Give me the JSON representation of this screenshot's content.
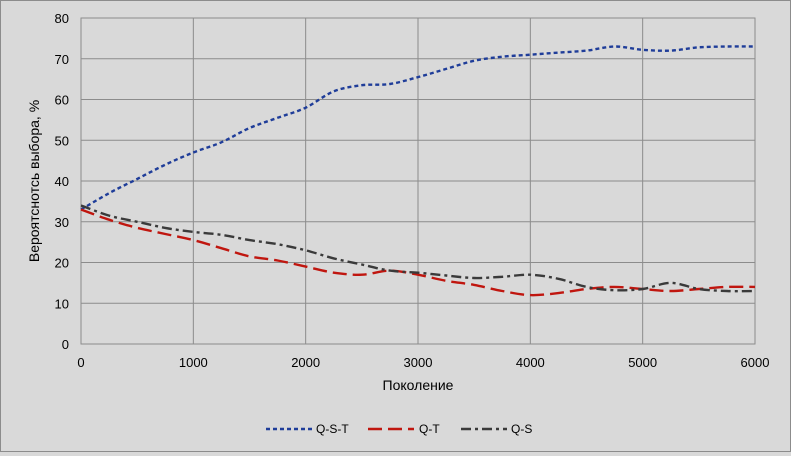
{
  "chart_data": {
    "type": "line",
    "title": "",
    "xlabel": "Поколение",
    "ylabel": "Вероятснотсь выбора, %",
    "xlim": [
      0,
      6000
    ],
    "ylim": [
      0,
      80
    ],
    "x_ticks": [
      0,
      1000,
      2000,
      3000,
      4000,
      5000,
      6000
    ],
    "y_ticks": [
      0,
      10,
      20,
      30,
      40,
      50,
      60,
      70,
      80
    ],
    "grid": true,
    "legend_position": "bottom",
    "x": [
      0,
      250,
      500,
      750,
      1000,
      1250,
      1500,
      1750,
      2000,
      2250,
      2500,
      2750,
      3000,
      3250,
      3500,
      3750,
      4000,
      4250,
      4500,
      4750,
      5000,
      5250,
      5500,
      5750,
      6000
    ],
    "series": [
      {
        "name": "Q-S-T",
        "color": "#1f3d99",
        "dash": "short",
        "values": [
          33,
          37,
          40.5,
          44,
          47,
          49.5,
          53,
          55.5,
          58,
          62,
          63.5,
          63.8,
          65.5,
          67.5,
          69.5,
          70.5,
          71,
          71.5,
          72,
          73,
          72.2,
          72,
          72.8,
          73,
          73
        ]
      },
      {
        "name": "Q-T",
        "color": "#c0160f",
        "dash": "long",
        "values": [
          33,
          30.5,
          28.5,
          27,
          25.5,
          23.5,
          21.5,
          20.5,
          19,
          17.5,
          17,
          18,
          17,
          15.5,
          14.5,
          13,
          12,
          12.5,
          13.5,
          14,
          13.5,
          13,
          13.5,
          14,
          14
        ]
      },
      {
        "name": "Q-S",
        "color": "#3a3a3a",
        "dash": "dashdot",
        "values": [
          34,
          31.5,
          30,
          28.5,
          27.5,
          26.8,
          25.5,
          24.5,
          23,
          21,
          19.5,
          18,
          17.5,
          16.8,
          16.2,
          16.5,
          17,
          16,
          14,
          13.2,
          13.5,
          15,
          13.5,
          13,
          13
        ]
      }
    ]
  }
}
